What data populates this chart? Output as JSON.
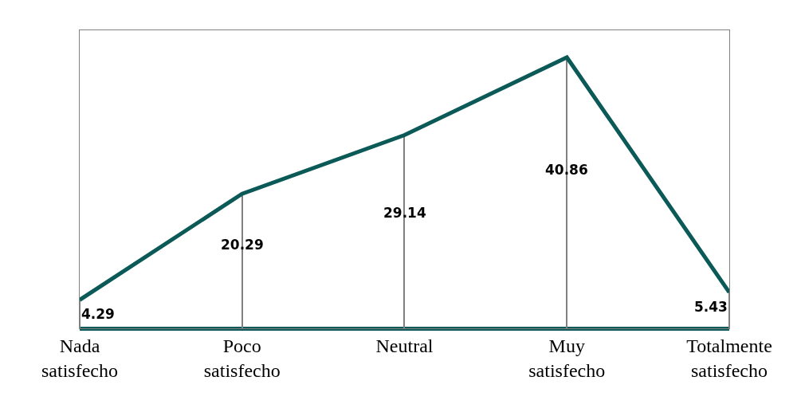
{
  "chart_data": {
    "type": "line",
    "categories": [
      "Nada satisfecho",
      "Poco satisfecho",
      "Neutral",
      "Muy satisfecho",
      "Totalmente satisfecho"
    ],
    "series": [
      {
        "color": "#0b5a57",
        "values": [
          4.29,
          20.29,
          29.14,
          40.86,
          5.43
        ],
        "value_labels": [
          "4.29",
          null,
          null,
          null,
          "5.43"
        ]
      },
      {
        "type": "bar",
        "color": "#808080",
        "values": [
          4.29,
          20.29,
          29.14,
          40.86,
          5.43
        ],
        "value_labels": [
          null,
          "20.29",
          "29.14",
          "40.86",
          null
        ]
      }
    ],
    "marker": "none"
  }
}
